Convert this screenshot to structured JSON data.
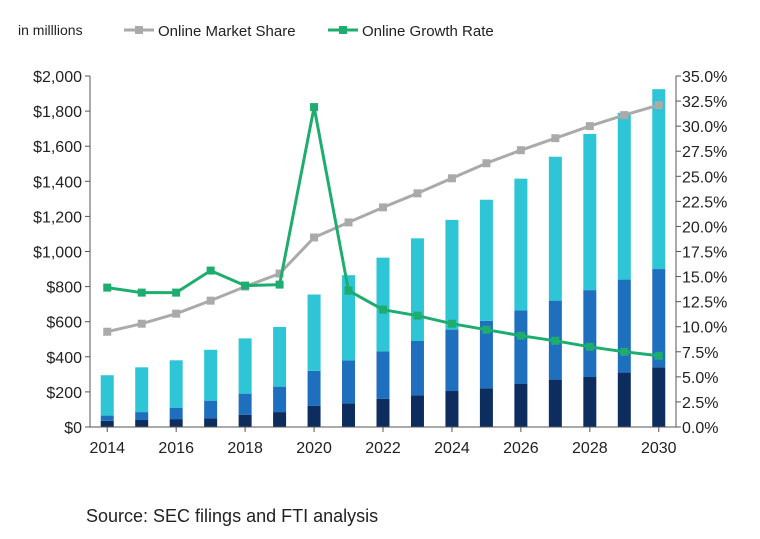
{
  "chart_data": {
    "type": "bar",
    "unit_label": "in milllions",
    "categories": [
      "2014",
      "2015",
      "2016",
      "2017",
      "2018",
      "2019",
      "2020",
      "2021",
      "2022",
      "2023",
      "2024",
      "2025",
      "2026",
      "2027",
      "2028",
      "2029",
      "2030"
    ],
    "x_tick_labels": [
      "2014",
      "2016",
      "2018",
      "2020",
      "2022",
      "2024",
      "2026",
      "2028",
      "2030"
    ],
    "stack_series": [
      {
        "values": [
          35,
          40,
          45,
          50,
          70,
          85,
          120,
          135,
          160,
          180,
          205,
          220,
          245,
          270,
          285,
          310,
          340
        ],
        "color": "#0d2d5e"
      },
      {
        "values": [
          30,
          45,
          65,
          100,
          120,
          145,
          200,
          245,
          270,
          310,
          350,
          385,
          420,
          450,
          495,
          530,
          560
        ],
        "color": "#1f6fbf"
      },
      {
        "values": [
          230,
          255,
          270,
          290,
          315,
          340,
          435,
          485,
          535,
          585,
          625,
          690,
          750,
          820,
          890,
          950,
          1025
        ],
        "color": "#2ec5d6"
      }
    ],
    "line_series": [
      {
        "name": "Online Market Share",
        "color": "#aaaaaa",
        "marker": "square",
        "values": [
          9.5,
          10.3,
          11.3,
          12.6,
          14.0,
          15.3,
          18.9,
          20.4,
          21.9,
          23.3,
          24.8,
          26.3,
          27.6,
          28.8,
          30.0,
          31.1,
          32.1
        ]
      },
      {
        "name": "Online Growth Rate",
        "color": "#1fad6f",
        "marker": "square",
        "values": [
          13.9,
          13.4,
          13.4,
          15.6,
          14.1,
          14.2,
          31.9,
          13.6,
          11.7,
          11.1,
          10.3,
          9.7,
          9.1,
          8.6,
          8.0,
          7.5,
          7.1
        ]
      }
    ],
    "y_left": {
      "min": 0,
      "max": 2000,
      "step": 200,
      "tick_labels": [
        "$0",
        "$200",
        "$400",
        "$600",
        "$800",
        "$1,000",
        "$1,200",
        "$1,400",
        "$1,600",
        "$1,800",
        "$2,000"
      ]
    },
    "y_right": {
      "min": 0,
      "max": 35,
      "step": 2.5,
      "tick_labels": [
        "0.0%",
        "2.5%",
        "5.0%",
        "7.5%",
        "10.0%",
        "12.5%",
        "15.0%",
        "17.5%",
        "20.0%",
        "22.5%",
        "25.0%",
        "27.5%",
        "30.0%",
        "32.5%",
        "35.0%"
      ]
    },
    "grid": false,
    "legend_position": "top"
  },
  "source_note": "Source: SEC filings and FTI analysis"
}
